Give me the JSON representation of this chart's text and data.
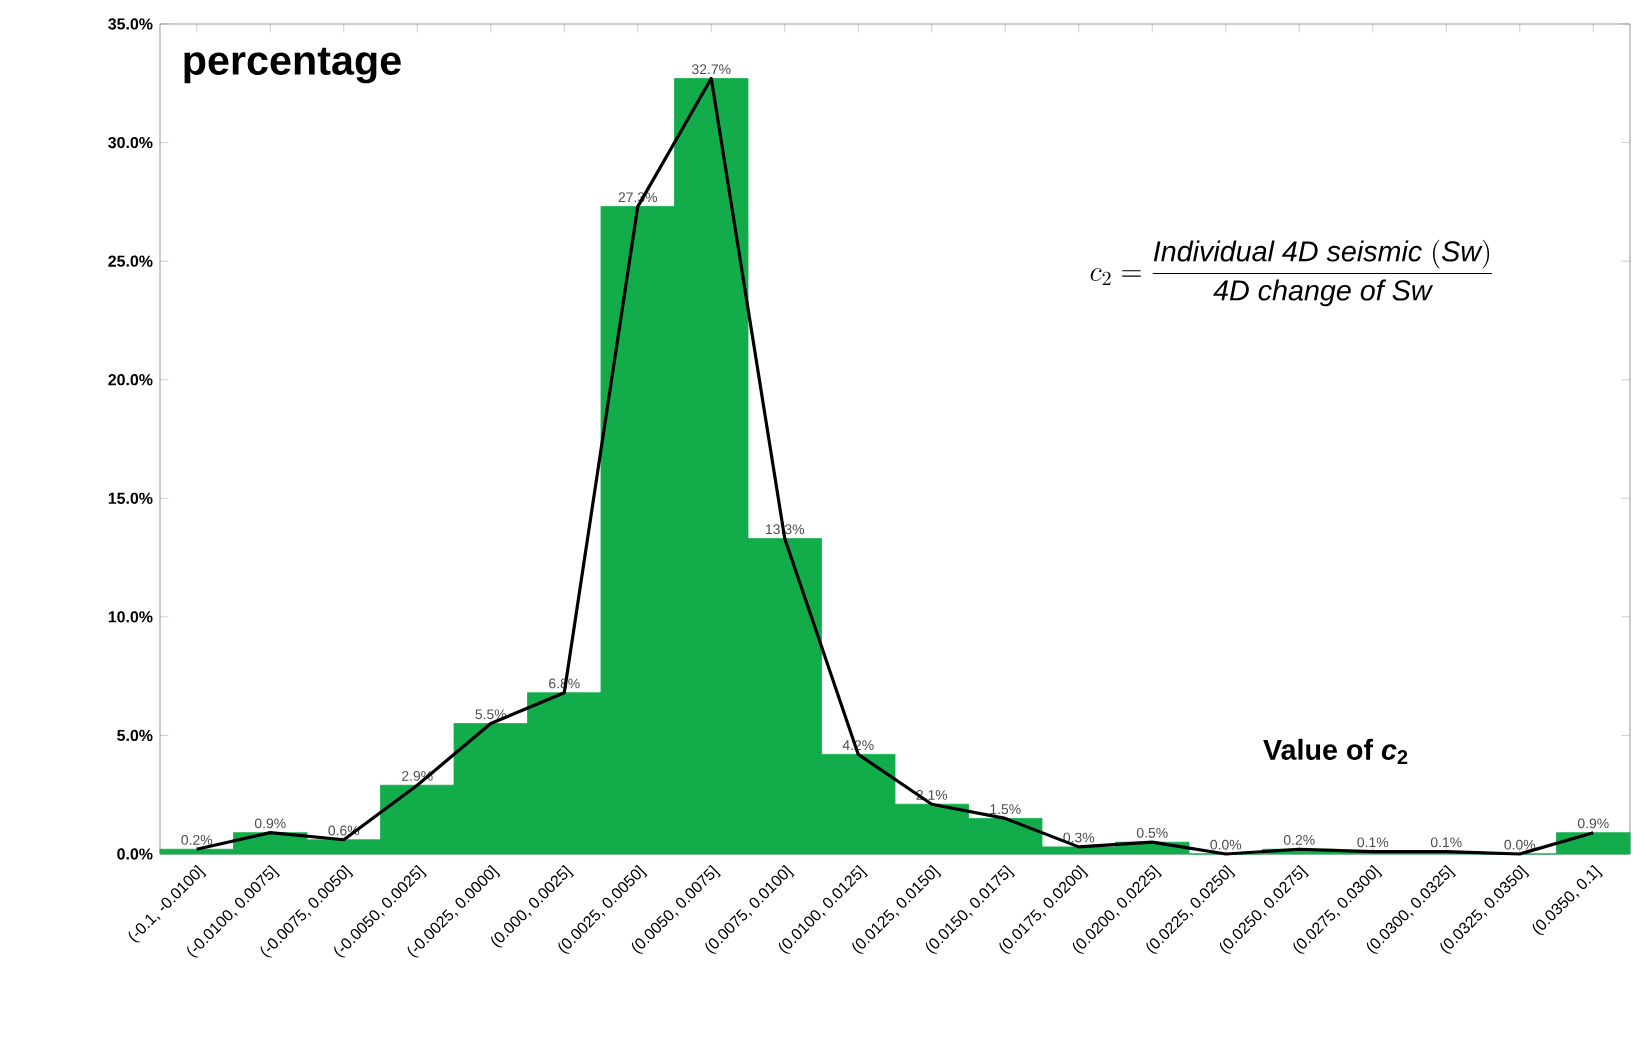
{
  "chart_data": {
    "type": "bar",
    "ylabel": "percentage",
    "xlabel": "Value of *c*$_{2}$",
    "annotations": [
      "c_{2} = \\frac{\\mathit{Individual\\ 4D\\ seismic\\ (Sw)}}{\\mathit{4D\\ change\\ of\\ Sw}}"
    ],
    "categories": [
      "(-0.1, -0.0100]",
      "(-0.0100, 0.0075]",
      "(-0.0075, 0.0050]",
      "(-0.0050, 0.0025]",
      "(-0.0025, 0.0000]",
      "(0.000, 0.0025]",
      "(0.0025, 0.0050]",
      "(0.0050, 0.0075]",
      "(0.0075, 0.0100]",
      "(0.0100, 0.0125]",
      "(0.0125, 0.0150]",
      "(0.0150, 0.0175]",
      "(0.0175, 0.0200]",
      "(0.0200, 0.0225]",
      "(0.0225, 0.0250]",
      "(0.0250, 0.0275]",
      "(0.0275, 0.0300]",
      "(0.0300, 0.0325]",
      "(0.0325, 0.0350]",
      "(0.0350, 0.1]"
    ],
    "series": [
      {
        "color": "#13ac4b",
        "values": [
          0.2,
          0.9,
          0.6,
          2.9,
          5.5,
          6.8,
          27.3,
          32.7,
          13.3,
          4.2,
          2.1,
          1.5,
          0.3,
          0.5,
          0.0,
          0.2,
          0.1,
          0.1,
          0.0,
          0.9
        ],
        "value_labels": [
          "0.2%",
          "0.9%",
          "0.6%",
          "2.9%",
          "5.5%",
          "6.8%",
          "27.3%",
          "32.7%",
          "13.3%",
          "4.2%",
          "2.1%",
          "1.5%",
          "0.3%",
          "0.5%",
          "0.0%",
          "0.2%",
          "0.1%",
          "0.1%",
          "0.0%",
          "0.9%"
        ]
      },
      {
        "type": "line",
        "color": "#000000",
        "values": [
          0.2,
          0.9,
          0.6,
          2.9,
          5.5,
          6.8,
          27.3,
          32.7,
          13.3,
          4.2,
          2.1,
          1.5,
          0.3,
          0.5,
          0.0,
          0.2,
          0.1,
          0.1,
          0.0,
          0.9
        ]
      }
    ],
    "ylim": [
      0,
      35
    ],
    "yticks": [
      {
        "value": 0,
        "label": "0.0%"
      },
      {
        "value": 5,
        "label": "5.0%"
      },
      {
        "value": 10,
        "label": "10.0%"
      },
      {
        "value": 15,
        "label": "15.0%"
      },
      {
        "value": 20,
        "label": "20.0%"
      },
      {
        "value": 25,
        "label": "25.0%"
      },
      {
        "value": 30,
        "label": "30.0%"
      },
      {
        "value": 35,
        "label": "35.0%"
      }
    ]
  }
}
